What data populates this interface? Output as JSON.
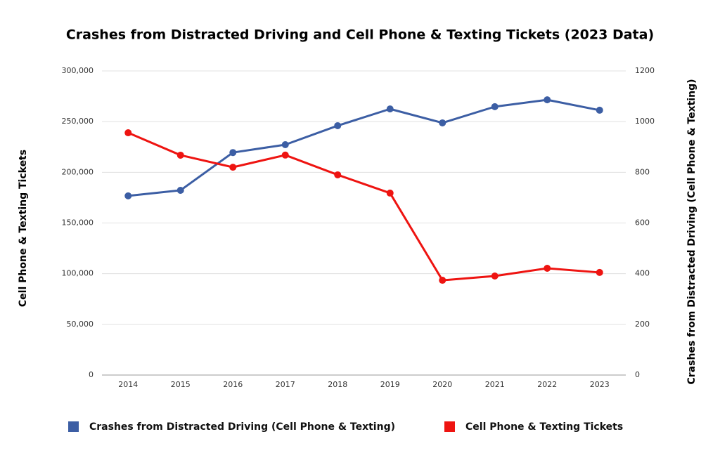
{
  "chart_data": {
    "type": "line",
    "title": "Crashes from Distracted Driving and Cell Phone & Texting Tickets (2023 Data)",
    "ylabel": "Cell Phone & Texting Tickets",
    "y2label": "Crashes from Distracted Driving (Cell Phone & Texting)",
    "categories": [
      "2014",
      "2015",
      "2016",
      "2017",
      "2018",
      "2019",
      "2020",
      "2021",
      "2022",
      "2023"
    ],
    "series": [
      {
        "name": "Crashes from Distracted Driving (Cell Phone & Texting)",
        "color": "#3c5ea4",
        "axis": "y2",
        "values": [
          707,
          729,
          878,
          909,
          984,
          1050,
          995,
          1059,
          1086,
          1045
        ]
      },
      {
        "name": "Cell Phone & Texting Tickets",
        "color": "#ee1411",
        "values": [
          239000,
          216900,
          205000,
          217000,
          197500,
          179500,
          93500,
          97700,
          105300,
          101200
        ]
      }
    ],
    "ylim": [
      0,
      300000
    ],
    "yticks": [
      0,
      {
        "value": 50000,
        "label": "50,000"
      },
      {
        "value": 100000,
        "label": "100,000"
      },
      {
        "value": 150000,
        "label": "150,000"
      },
      {
        "value": 200000,
        "label": "200,000"
      },
      {
        "value": 250000,
        "label": "250,000"
      },
      {
        "value": 300000,
        "label": "300,000"
      }
    ],
    "y2lim": [
      0,
      1200
    ],
    "y2ticks": [
      0,
      200,
      400,
      600,
      800,
      1000,
      1200
    ],
    "grid": true,
    "legend": "bottom"
  }
}
